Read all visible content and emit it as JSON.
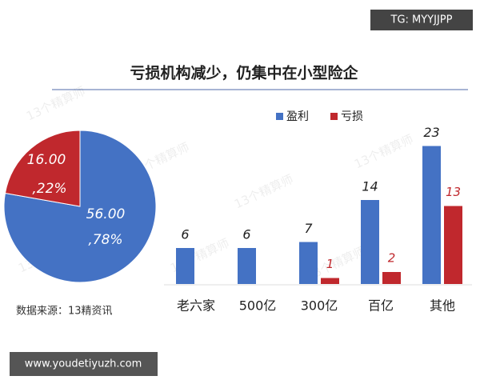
{
  "header": {
    "title": "亏损机构减少，仍集中在小型险企",
    "source": "数据来源：13精资讯"
  },
  "watermarks": {
    "top": "TG: MYYJJPP",
    "bottom": "www.youdetiyuzh.com",
    "faint": "13个精算师"
  },
  "chart_data": [
    {
      "type": "pie",
      "values": [
        56,
        16
      ],
      "value_labels": [
        "56.00",
        "16.00"
      ],
      "percents": [
        78,
        22
      ],
      "percent_labels": [
        ",78%",
        ",22%"
      ],
      "colors": [
        "#4472c4",
        "#c0282d"
      ]
    },
    {
      "type": "bar",
      "categories": [
        "老六家",
        "500亿",
        "300亿",
        "百亿",
        "其他"
      ],
      "series": [
        {
          "name": "盈利",
          "color": "#4472c4",
          "values": [
            6,
            6,
            7,
            14,
            23
          ]
        },
        {
          "name": "亏损",
          "color": "#c0282d",
          "values": [
            null,
            null,
            1,
            2,
            13
          ]
        }
      ],
      "legend": "top"
    }
  ]
}
